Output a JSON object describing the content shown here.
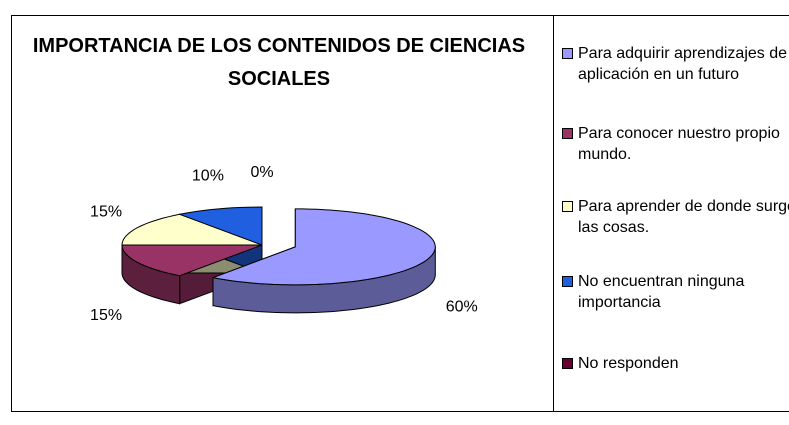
{
  "chart_data": {
    "type": "pie3d",
    "title": "IMPORTANCIA DE LOS CONTENIDOS DE CIENCIAS SOCIALES",
    "categories": [
      "Para adquirir aprendizajes de aplicación en un futuro",
      "Para conocer nuestro propio mundo.",
      "Para aprender de donde surgen las cosas.",
      "No encuentran ninguna importancia",
      "No responden"
    ],
    "values": [
      60,
      15,
      15,
      10,
      0
    ],
    "value_labels": [
      "60%",
      "15%",
      "15%",
      "10%",
      "0%"
    ],
    "colors": [
      "#9999ff",
      "#993366",
      "#ffffcc",
      "#1f5fe0",
      "#660033"
    ],
    "legend": "right"
  }
}
